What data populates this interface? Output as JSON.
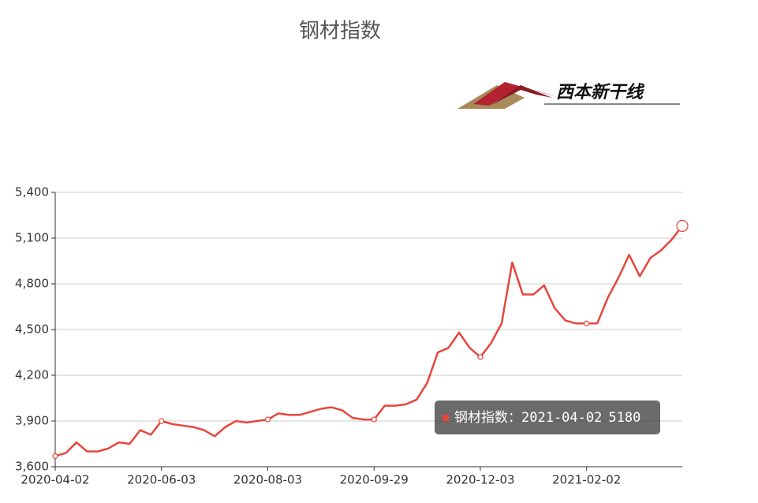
{
  "chart_data": {
    "type": "line",
    "title": "钢材指数",
    "logo_text": "西本新干线",
    "categories": [
      "2020-04-02",
      null,
      null,
      null,
      null,
      null,
      null,
      null,
      null,
      null,
      "2020-06-03",
      null,
      null,
      null,
      null,
      null,
      null,
      null,
      null,
      null,
      "2020-08-03",
      null,
      null,
      null,
      null,
      null,
      null,
      null,
      null,
      null,
      "2020-09-29",
      null,
      null,
      null,
      null,
      null,
      null,
      null,
      null,
      null,
      "2020-12-03",
      null,
      null,
      null,
      null,
      null,
      null,
      null,
      null,
      null,
      "2021-02-02",
      null,
      null,
      null,
      null,
      null,
      null,
      null,
      null,
      null
    ],
    "series": [
      {
        "name": "钢材指数",
        "color": "#e8453c",
        "values": [
          3670,
          3690,
          3760,
          3700,
          3700,
          3720,
          3760,
          3750,
          3840,
          3810,
          3900,
          3880,
          3870,
          3860,
          3840,
          3800,
          3860,
          3900,
          3890,
          3900,
          3910,
          3950,
          3940,
          3940,
          3960,
          3980,
          3990,
          3970,
          3920,
          3910,
          3910,
          4000,
          4000,
          4010,
          4040,
          4150,
          4350,
          4380,
          4480,
          4380,
          4320,
          4410,
          4540,
          4940,
          4730,
          4730,
          4790,
          4640,
          4560,
          4540,
          4540,
          4540,
          4710,
          4840,
          4990,
          4850,
          4970,
          5020,
          5090,
          5180
        ]
      }
    ],
    "ylim": [
      3600,
      5400
    ],
    "yticks": [
      {
        "value": 3600,
        "label": "3,600"
      },
      {
        "value": 3900,
        "label": "3,900"
      },
      {
        "value": 4200,
        "label": "4,200"
      },
      {
        "value": 4500,
        "label": "4,500"
      },
      {
        "value": 4800,
        "label": "4,800"
      },
      {
        "value": 5100,
        "label": "5,100"
      },
      {
        "value": 5400,
        "label": "5,400"
      }
    ],
    "grid": true,
    "tooltip": {
      "label": "钢材指数：",
      "date": "2021-04-02",
      "value": 5180
    }
  }
}
